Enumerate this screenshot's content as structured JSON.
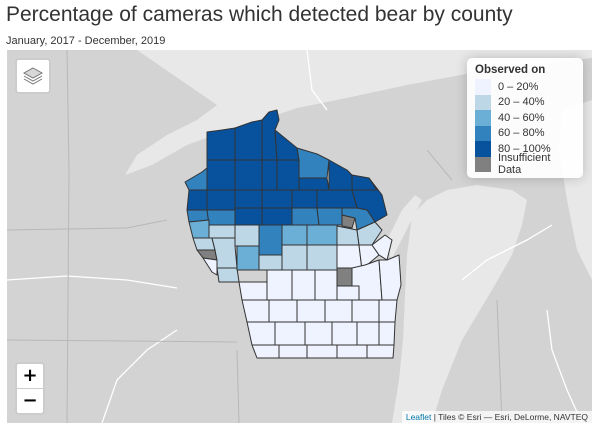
{
  "header": {
    "title": "Percentage of cameras which detected bear by county",
    "subtitle": "January, 2017 - December, 2019"
  },
  "legend": {
    "title": "Observed on",
    "items": [
      {
        "label": "0 – 20%",
        "color": "#eff3ff"
      },
      {
        "label": "20 – 40%",
        "color": "#bdd7e7"
      },
      {
        "label": "40 – 60%",
        "color": "#6baed6"
      },
      {
        "label": "60 – 80%",
        "color": "#3182bd"
      },
      {
        "label": "80 – 100%",
        "color": "#08519c"
      },
      {
        "label": "Insufficient Data",
        "color": "#808080"
      }
    ]
  },
  "zoom": {
    "in_label": "+",
    "out_label": "−"
  },
  "attribution": {
    "link_text": "Leaflet",
    "text": " | Tiles © Esri — Esri, DeLorme, NAVTEQ"
  },
  "map": {
    "basemap_land_color": "#d3d3d3",
    "basemap_water_color": "#e8e8e8",
    "county_border_color": "#333333",
    "layers_icon": "layers-icon"
  }
}
